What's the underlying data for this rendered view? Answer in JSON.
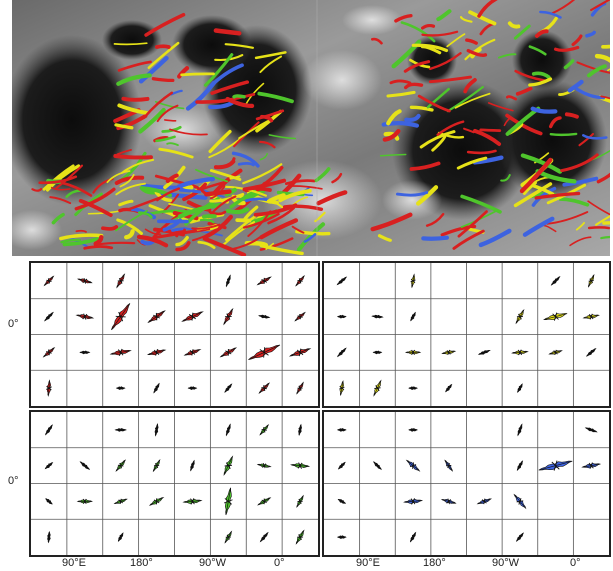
{
  "axes": {
    "y_zero_label": "0°",
    "x_tick_labels": [
      "90°E",
      "180°",
      "90°W",
      "0°"
    ]
  },
  "colors": {
    "red": "#d82020",
    "yellow": "#e6e218",
    "green": "#4fc52c",
    "blue": "#3d63e0",
    "map_dark": "#1a1a1a",
    "map_mid": "#8c8c8c",
    "map_light": "#c8c8c8",
    "panel_border": "#222222",
    "grid": "#555555",
    "rose_black": "#111111"
  },
  "panels": [
    {
      "name": "red-rose-panel",
      "color_key": "red",
      "cells": [
        [
          {
            "a": 45,
            "s": 0.6
          },
          {
            "a": -15,
            "s": 0.7
          },
          {
            "a": 60,
            "s": 0.8
          },
          null,
          null,
          {
            "a": 70,
            "s": 0.5
          },
          {
            "a": 30,
            "s": 0.8
          },
          {
            "a": 50,
            "s": 0.6
          }
        ],
        [
          {
            "a": 45,
            "s": 0.5
          },
          {
            "a": -10,
            "s": 0.9
          },
          {
            "a": 55,
            "s": 2.2
          },
          {
            "a": 35,
            "s": 1.2
          },
          {
            "a": 25,
            "s": 1.4
          },
          {
            "a": 60,
            "s": 1.0
          },
          {
            "a": -10,
            "s": 0.4
          },
          {
            "a": 40,
            "s": 0.6
          }
        ],
        [
          {
            "a": 40,
            "s": 0.7
          },
          {
            "a": 0,
            "s": 0.3
          },
          {
            "a": 10,
            "s": 1.2
          },
          {
            "a": 15,
            "s": 1.0
          },
          {
            "a": 20,
            "s": 0.9
          },
          {
            "a": 30,
            "s": 1.0
          },
          {
            "a": 25,
            "s": 2.4
          },
          {
            "a": 20,
            "s": 1.3
          }
        ],
        [
          {
            "a": 85,
            "s": 0.8
          },
          null,
          {
            "a": 0,
            "s": 0.2
          },
          {
            "a": 60,
            "s": 0.4
          },
          {
            "a": 0,
            "s": 0.2
          },
          {
            "a": 50,
            "s": 0.4
          },
          {
            "a": 45,
            "s": 0.7
          },
          {
            "a": 60,
            "s": 0.6
          }
        ]
      ]
    },
    {
      "name": "yellow-rose-panel",
      "color_key": "yellow",
      "cells": [
        [
          {
            "a": 40,
            "s": 0.5
          },
          null,
          {
            "a": 80,
            "s": 0.6
          },
          null,
          null,
          null,
          {
            "a": 45,
            "s": 0.5
          },
          {
            "a": 65,
            "s": 0.6
          }
        ],
        [
          {
            "a": 0,
            "s": 0.2
          },
          {
            "a": -5,
            "s": 0.4
          },
          {
            "a": 60,
            "s": 0.3
          },
          null,
          null,
          {
            "a": 60,
            "s": 0.8
          },
          {
            "a": 15,
            "s": 1.5
          },
          {
            "a": 10,
            "s": 0.8
          }
        ],
        [
          {
            "a": 45,
            "s": 0.5
          },
          {
            "a": 0,
            "s": 0.2
          },
          {
            "a": 0,
            "s": 0.7
          },
          {
            "a": 10,
            "s": 0.6
          },
          {
            "a": 20,
            "s": 0.5
          },
          {
            "a": 5,
            "s": 0.8
          },
          {
            "a": 15,
            "s": 0.6
          },
          {
            "a": 40,
            "s": 0.5
          }
        ],
        [
          {
            "a": 80,
            "s": 0.7
          },
          {
            "a": 65,
            "s": 0.9
          },
          {
            "a": 0,
            "s": 0.2
          },
          {
            "a": 50,
            "s": 0.3
          },
          null,
          {
            "a": 60,
            "s": 0.3
          },
          null,
          null
        ]
      ]
    },
    {
      "name": "green-rose-panel",
      "color_key": "green",
      "cells": [
        [
          {
            "a": 55,
            "s": 0.5
          },
          null,
          {
            "a": 0,
            "s": 0.4
          },
          {
            "a": 80,
            "s": 0.5
          },
          null,
          {
            "a": 70,
            "s": 0.5
          },
          {
            "a": 50,
            "s": 0.6
          },
          {
            "a": 80,
            "s": 0.4
          }
        ],
        [
          {
            "a": 40,
            "s": 0.3
          },
          {
            "a": -40,
            "s": 0.5
          },
          {
            "a": 50,
            "s": 0.7
          },
          {
            "a": 60,
            "s": 0.6
          },
          {
            "a": 70,
            "s": 0.4
          },
          {
            "a": 65,
            "s": 1.2
          },
          {
            "a": -10,
            "s": 0.6
          },
          {
            "a": -5,
            "s": 1.0
          }
        ],
        [
          {
            "a": -40,
            "s": 0.2
          },
          {
            "a": 0,
            "s": 0.7
          },
          {
            "a": 20,
            "s": 0.6
          },
          {
            "a": 30,
            "s": 0.8
          },
          {
            "a": 5,
            "s": 1.0
          },
          {
            "a": 80,
            "s": 1.8
          },
          {
            "a": 30,
            "s": 0.7
          },
          {
            "a": 60,
            "s": 0.6
          }
        ],
        [
          {
            "a": 85,
            "s": 0.4
          },
          null,
          {
            "a": 60,
            "s": 0.3
          },
          null,
          null,
          {
            "a": 60,
            "s": 0.6
          },
          {
            "a": 50,
            "s": 0.5
          },
          {
            "a": 60,
            "s": 0.8
          }
        ]
      ]
    },
    {
      "name": "blue-rose-panel",
      "color_key": "blue",
      "cells": [
        [
          {
            "a": 0,
            "s": 0.2
          },
          null,
          {
            "a": 0,
            "s": 0.2
          },
          null,
          null,
          {
            "a": 70,
            "s": 0.5
          },
          null,
          {
            "a": -20,
            "s": 0.5
          }
        ],
        [
          {
            "a": 45,
            "s": 0.3
          },
          {
            "a": -45,
            "s": 0.4
          },
          {
            "a": -40,
            "s": 0.9
          },
          {
            "a": -55,
            "s": 0.6
          },
          null,
          {
            "a": 60,
            "s": 0.4
          },
          {
            "a": 15,
            "s": 2.4
          },
          {
            "a": 10,
            "s": 1.0
          }
        ],
        [
          {
            "a": -30,
            "s": 0.2
          },
          null,
          {
            "a": 5,
            "s": 1.0
          },
          {
            "a": -15,
            "s": 0.7
          },
          {
            "a": 20,
            "s": 0.7
          },
          {
            "a": -50,
            "s": 1.0
          },
          null,
          null
        ],
        [
          {
            "a": 0,
            "s": 0.2
          },
          null,
          {
            "a": 60,
            "s": 0.4
          },
          null,
          null,
          {
            "a": 50,
            "s": 0.4
          },
          null,
          null
        ]
      ]
    }
  ]
}
